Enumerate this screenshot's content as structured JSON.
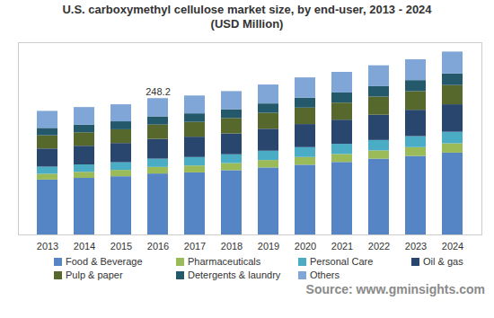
{
  "chart_data": {
    "type": "bar",
    "stacked": true,
    "title": "U.S. carboxymethyl cellulose market size, by end-user, 2013 - 2024",
    "subtitle": "(USD Million)",
    "source": "Source: www.gminsights.com",
    "categories": [
      "2013",
      "2014",
      "2015",
      "2016",
      "2017",
      "2018",
      "2019",
      "2020",
      "2021",
      "2022",
      "2023",
      "2024"
    ],
    "series": [
      {
        "name": "Food & Beverage",
        "color": "#5585c5",
        "values": [
          100,
          103,
          106,
          111,
          113,
          117,
          122,
          127,
          132,
          138,
          143,
          149
        ]
      },
      {
        "name": "Pharmaceuticals",
        "color": "#9bbb59",
        "values": [
          10.5,
          11,
          11.5,
          12,
          12.5,
          13,
          13.5,
          14,
          14.5,
          15,
          16,
          17
        ]
      },
      {
        "name": "Personal Care",
        "color": "#4bacc6",
        "values": [
          13,
          13.5,
          14,
          15,
          15.5,
          16,
          17,
          18,
          18.5,
          19,
          20,
          21
        ]
      },
      {
        "name": "Oil & gas",
        "color": "#28466e",
        "values": [
          33,
          34,
          35,
          36,
          37,
          38,
          40,
          42,
          44,
          46,
          48,
          50
        ]
      },
      {
        "name": "Pulp & paper",
        "color": "#56682b",
        "values": [
          24,
          24.5,
          25,
          26,
          27,
          28,
          29,
          30,
          31,
          33,
          34,
          35
        ]
      },
      {
        "name": "Detergents & laundry",
        "color": "#23596b",
        "values": [
          13.5,
          14,
          14.5,
          15,
          15.5,
          16,
          17,
          18,
          18.5,
          19,
          20,
          21
        ]
      },
      {
        "name": "Others",
        "color": "#7fa6d6",
        "values": [
          31,
          32,
          31,
          33.2,
          32.5,
          33,
          34.5,
          37,
          37.5,
          38,
          38,
          40
        ]
      }
    ],
    "annotations": [
      {
        "category": "2016",
        "value": 248.2,
        "text": "248.2"
      }
    ],
    "ylim": [
      0,
      350
    ],
    "tick_labels": "x",
    "grid": false,
    "legend": "bottom"
  }
}
